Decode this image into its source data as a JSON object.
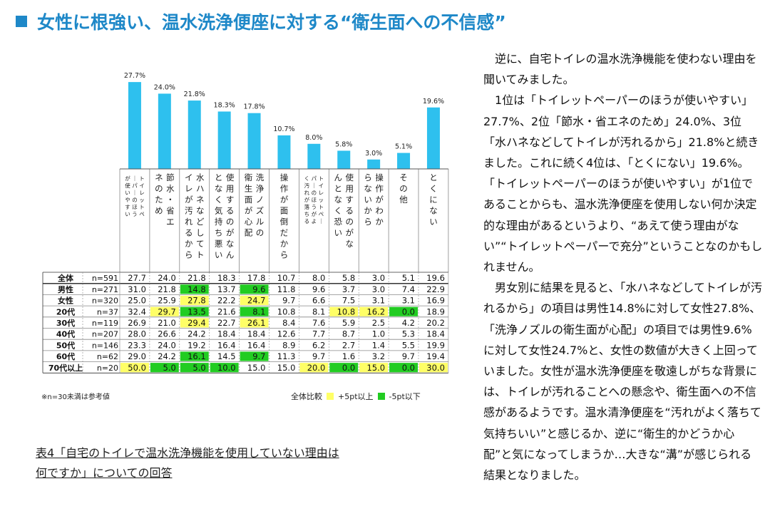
{
  "section_title": "女性に根強い、温水洗浄便座に対する“衛生面への不信感”",
  "chart_data": {
    "type": "bar",
    "categories": [
      "トイレットペーパーのほうが使いやすい",
      "節水・省エネのため",
      "水ハネなどしてトイレが汚れるから",
      "使用するのがなんとなく気持ち悪い",
      "洗浄ノズルの衛生面が心配",
      "操作が面倒だから",
      "トイレットペーパーのほうがよく汚れが落ちる",
      "使用するのがなんとなく恐い",
      "操作がわからないから",
      "その他",
      "とくにない"
    ],
    "bar_labels": [
      "27.7%",
      "24.0%",
      "21.8%",
      "18.3%",
      "17.8%",
      "10.7%",
      "8.0%",
      "5.8%",
      "3.0%",
      "5.1%",
      "19.6%"
    ],
    "values": [
      27.7,
      24.0,
      21.8,
      18.3,
      17.8,
      10.7,
      8.0,
      5.8,
      3.0,
      5.1,
      19.6
    ],
    "bar_color": "#2ec0ee",
    "table": {
      "rows": [
        {
          "group": "全体",
          "n": "n=591",
          "values": [
            "27.7",
            "24.0",
            "21.8",
            "18.3",
            "17.8",
            "10.7",
            "8.0",
            "5.8",
            "3.0",
            "5.1",
            "19.6"
          ],
          "flags": [
            0,
            0,
            0,
            0,
            0,
            0,
            0,
            0,
            0,
            0,
            0
          ]
        },
        {
          "group": "男性",
          "n": "n=271",
          "values": [
            "31.0",
            "21.8",
            "14.8",
            "13.7",
            "9.6",
            "11.8",
            "9.6",
            "3.7",
            "3.0",
            "7.4",
            "22.9"
          ],
          "flags": [
            0,
            0,
            -1,
            0,
            -1,
            0,
            0,
            0,
            0,
            0,
            0
          ]
        },
        {
          "group": "女性",
          "n": "n=320",
          "values": [
            "25.0",
            "25.9",
            "27.8",
            "22.2",
            "24.7",
            "9.7",
            "6.6",
            "7.5",
            "3.1",
            "3.1",
            "16.9"
          ],
          "flags": [
            0,
            0,
            1,
            0,
            1,
            0,
            0,
            0,
            0,
            0,
            0
          ]
        },
        {
          "group": "20代",
          "n": "n=37",
          "values": [
            "32.4",
            "29.7",
            "13.5",
            "21.6",
            "8.1",
            "10.8",
            "8.1",
            "10.8",
            "16.2",
            "0.0",
            "18.9"
          ],
          "flags": [
            0,
            1,
            -1,
            0,
            -1,
            0,
            0,
            1,
            1,
            -1,
            0
          ]
        },
        {
          "group": "30代",
          "n": "n=119",
          "values": [
            "26.9",
            "21.0",
            "29.4",
            "22.7",
            "26.1",
            "8.4",
            "7.6",
            "5.9",
            "2.5",
            "4.2",
            "20.2"
          ],
          "flags": [
            0,
            0,
            1,
            0,
            1,
            0,
            0,
            0,
            0,
            0,
            0
          ]
        },
        {
          "group": "40代",
          "n": "n=207",
          "values": [
            "28.0",
            "26.6",
            "24.2",
            "18.4",
            "18.4",
            "12.6",
            "7.7",
            "8.7",
            "1.0",
            "5.3",
            "18.4"
          ],
          "flags": [
            0,
            0,
            0,
            0,
            0,
            0,
            0,
            0,
            0,
            0,
            0
          ]
        },
        {
          "group": "50代",
          "n": "n=146",
          "values": [
            "23.3",
            "24.0",
            "19.2",
            "16.4",
            "16.4",
            "8.9",
            "6.2",
            "2.7",
            "1.4",
            "5.5",
            "19.9"
          ],
          "flags": [
            0,
            0,
            0,
            0,
            0,
            0,
            0,
            0,
            0,
            0,
            0
          ]
        },
        {
          "group": "60代",
          "n": "n=62",
          "values": [
            "29.0",
            "24.2",
            "16.1",
            "14.5",
            "9.7",
            "11.3",
            "9.7",
            "1.6",
            "3.2",
            "9.7",
            "19.4"
          ],
          "flags": [
            0,
            0,
            -1,
            0,
            -1,
            0,
            0,
            0,
            0,
            0,
            0
          ]
        },
        {
          "group": "70代以上",
          "n": "n=20",
          "values": [
            "50.0",
            "5.0",
            "5.0",
            "10.0",
            "15.0",
            "15.0",
            "20.0",
            "0.0",
            "15.0",
            "0.0",
            "30.0"
          ],
          "flags": [
            1,
            -1,
            -1,
            -1,
            0,
            0,
            1,
            -1,
            1,
            -1,
            1
          ]
        }
      ],
      "highlight_colors": {
        "up": "#ffff66",
        "down": "#22cc22"
      }
    }
  },
  "note": "※n=30未満は参考値",
  "legend": {
    "base": "全体比較",
    "up": "+5pt以上",
    "down": "-5pt以下"
  },
  "caption": {
    "line1": "表4「自宅のトイレで温水洗浄機能を使用していない理由は",
    "line2": "何ですか」についての回答"
  },
  "body": {
    "p1": "逆に、自宅トイレの温水洗浄機能を使わない理由を聞いてみました。",
    "p2": "1位は「トイレットペーパーのほうが使いやすい」27.7%、2位「節水・省エネのため」24.0%、3位「水ハネなどしてトイレが汚れるから」21.8%と続きました。これに続く4位は、「とくにない」19.6%。「トイレットペーパーのほうが使いやすい」が1位であることからも、温水洗浄便座を使用しない何か決定的な理由があるというより、“あえて使う理由がない”“トイレットペーパーで充分”ということなのかもしれません。",
    "p3": "男女別に結果を見ると、「水ハネなどしてトイレが汚れるから」の項目は男性14.8%に対して女性27.8%、「洗浄ノズルの衛生面が心配」の項目では男性9.6%に対して女性24.7%と、女性の数値が大きく上回っていました。女性が温水洗浄便座を敬遠しがちな背景には、トイレが汚れることへの懸念や、衛生面への不信感があるようです。温水清浄便座を“汚れがよく落ちて気持ちいい”と感じるか、逆に“衛生的かどうか心配”と気になってしまうか…大きな“溝”が感じられる結果となりました。"
  }
}
